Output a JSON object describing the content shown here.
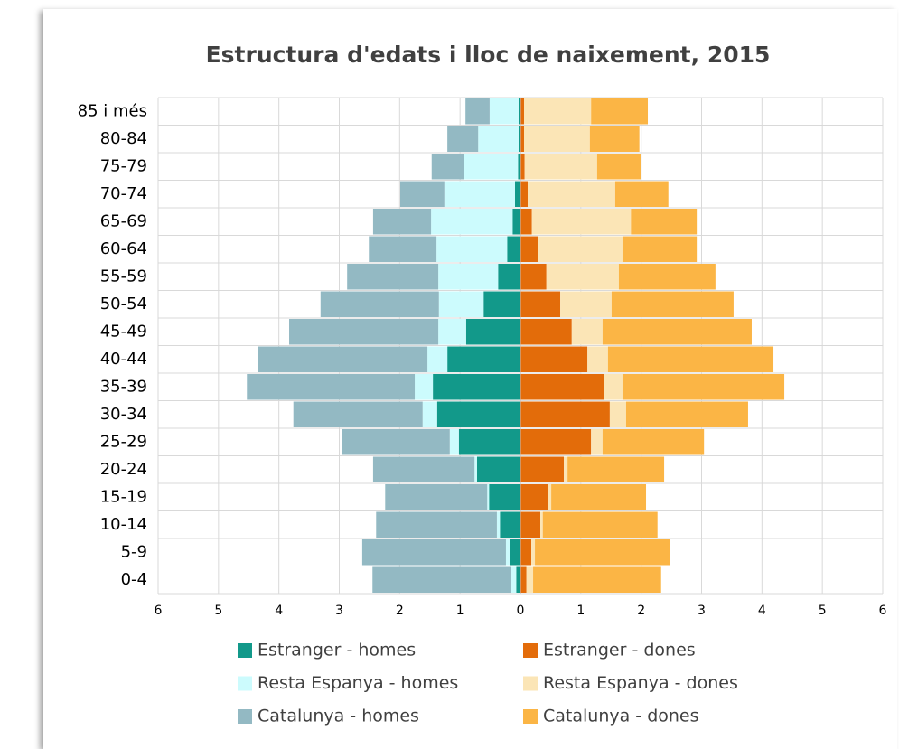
{
  "chart_data": {
    "type": "pyramid",
    "title": "Estructura d'edats i lloc de naixement, 2015",
    "categories": [
      "0-4",
      "5-9",
      "10-14",
      "15-19",
      "20-24",
      "25-29",
      "30-34",
      "35-39",
      "40-44",
      "45-49",
      "50-54",
      "55-59",
      "60-64",
      "65-69",
      "70-74",
      "75-79",
      "80-84",
      "85 i més"
    ],
    "series": [
      {
        "name": "Estranger - homes",
        "color": "#12998a",
        "values": [
          -0.07,
          -0.18,
          -0.34,
          -0.52,
          -0.72,
          -1.02,
          -1.38,
          -1.45,
          -1.21,
          -0.9,
          -0.61,
          -0.37,
          -0.22,
          -0.13,
          -0.09,
          -0.04,
          -0.03,
          -0.03
        ]
      },
      {
        "name": "Estranger - dones",
        "color": "#e36c0a",
        "values": [
          0.1,
          0.18,
          0.33,
          0.46,
          0.72,
          1.17,
          1.48,
          1.39,
          1.11,
          0.85,
          0.66,
          0.43,
          0.3,
          0.19,
          0.12,
          0.07,
          0.06,
          0.06
        ]
      },
      {
        "name": "Resta Espanya - homes",
        "color": "#ccfbfd",
        "values": [
          -0.08,
          -0.06,
          -0.05,
          -0.03,
          -0.04,
          -0.15,
          -0.24,
          -0.3,
          -0.33,
          -0.46,
          -0.74,
          -0.99,
          -1.17,
          -1.35,
          -1.17,
          -0.9,
          -0.67,
          -0.48
        ]
      },
      {
        "name": "Resta Espanya - dones",
        "color": "#fbe5b6",
        "values": [
          0.11,
          0.06,
          0.04,
          0.05,
          0.06,
          0.19,
          0.27,
          0.3,
          0.34,
          0.51,
          0.85,
          1.2,
          1.39,
          1.64,
          1.45,
          1.2,
          1.09,
          1.11
        ]
      },
      {
        "name": "Catalunya - homes",
        "color": "#93b9c3",
        "values": [
          -2.3,
          -2.38,
          -2.0,
          -1.69,
          -1.68,
          -1.78,
          -2.14,
          -2.78,
          -2.8,
          -2.47,
          -1.96,
          -1.51,
          -1.12,
          -0.96,
          -0.73,
          -0.53,
          -0.51,
          -0.4
        ]
      },
      {
        "name": "Catalunya - dones",
        "color": "#fbb545",
        "values": [
          2.12,
          2.23,
          1.9,
          1.57,
          1.6,
          1.68,
          2.02,
          2.68,
          2.74,
          2.47,
          2.02,
          1.6,
          1.23,
          1.09,
          0.88,
          0.73,
          0.82,
          0.94
        ]
      }
    ],
    "xlim": [
      -6,
      6
    ],
    "xticks": [
      {
        "value": -6,
        "label": "6"
      },
      {
        "value": -5,
        "label": "5"
      },
      {
        "value": -4,
        "label": "4"
      },
      {
        "value": -3,
        "label": "3"
      },
      {
        "value": -2,
        "label": "2"
      },
      {
        "value": -1,
        "label": "1"
      },
      0,
      1,
      2,
      3,
      4,
      5,
      6
    ],
    "grid": true,
    "legend": "bottom"
  }
}
